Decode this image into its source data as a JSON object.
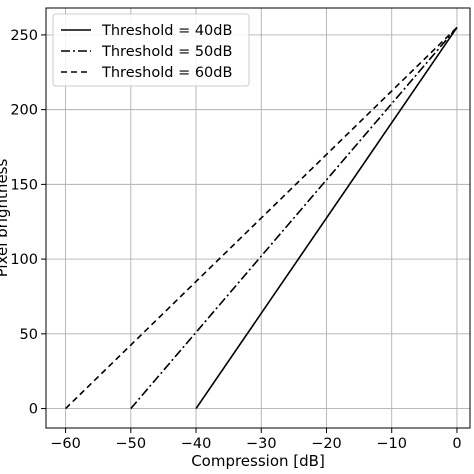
{
  "chart_data": {
    "type": "line",
    "xlabel": "Compression [dB]",
    "ylabel": "Pixel brightness",
    "xlim": [
      -63,
      2
    ],
    "ylim": [
      -13,
      268
    ],
    "grid": true,
    "legend_position": "top-left",
    "x_ticks": [
      -60,
      -50,
      -40,
      -30,
      -20,
      -10,
      0
    ],
    "y_ticks": [
      0,
      50,
      100,
      150,
      200,
      250
    ],
    "x_tick_labels": [
      "−60",
      "−50",
      "−40",
      "−30",
      "−20",
      "−10",
      "0"
    ],
    "y_tick_labels": [
      "0",
      "50",
      "100",
      "150",
      "200",
      "250"
    ],
    "series": [
      {
        "name": "Threshold = 40dB",
        "style": "solid",
        "x": [
          -40,
          0
        ],
        "y": [
          0,
          255
        ]
      },
      {
        "name": "Threshold = 50dB",
        "style": "dashdot",
        "x": [
          -50,
          0
        ],
        "y": [
          0,
          255
        ]
      },
      {
        "name": "Threshold = 60dB",
        "style": "dashed",
        "x": [
          -60,
          0
        ],
        "y": [
          0,
          255
        ]
      }
    ],
    "colors": {
      "lines": "#000000",
      "grid": "#b0b0b0",
      "legend_border": "#cccccc"
    }
  }
}
